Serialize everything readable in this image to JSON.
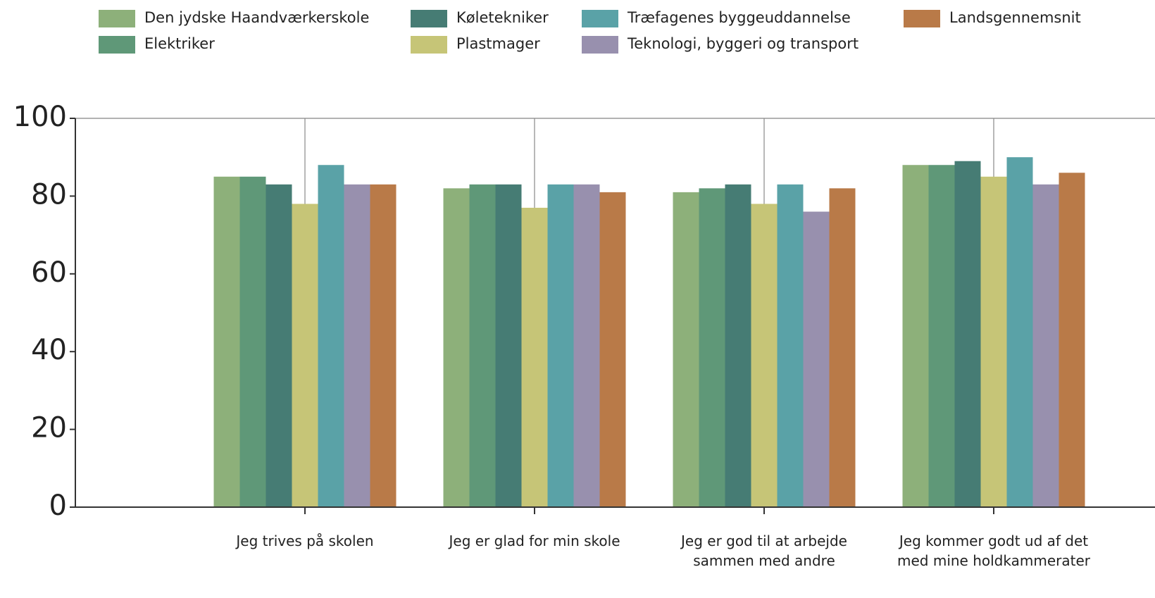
{
  "chart_data": {
    "type": "bar",
    "categories": [
      "Jeg trives på skolen",
      "Jeg er glad for min skole",
      "Jeg er god til at arbejde sammen med andre",
      "Jeg kommer godt ud af det med mine holdkammerater"
    ],
    "series": [
      {
        "name": "Den jydske Haandværkerskole",
        "color": "#8db07a",
        "values": [
          85,
          82,
          81,
          88
        ]
      },
      {
        "name": "Elektriker",
        "color": "#5f9878",
        "values": [
          85,
          83,
          82,
          88
        ]
      },
      {
        "name": "Køletekniker",
        "color": "#467c74",
        "values": [
          83,
          83,
          83,
          89
        ]
      },
      {
        "name": "Plastmager",
        "color": "#c6c577",
        "values": [
          78,
          77,
          78,
          85
        ]
      },
      {
        "name": "Træfagenes byggeuddannelse",
        "color": "#5aa2a7",
        "values": [
          88,
          83,
          83,
          90
        ]
      },
      {
        "name": "Teknologi, byggeri og transport",
        "color": "#9890ae",
        "values": [
          83,
          83,
          76,
          83
        ]
      },
      {
        "name": "Landsgennemsnit",
        "color": "#b97a48",
        "values": [
          83,
          81,
          82,
          86
        ]
      }
    ],
    "ylim": [
      0,
      100
    ],
    "yticks": [
      0,
      20,
      40,
      60,
      80,
      100
    ],
    "grid": true,
    "legend": "top"
  }
}
